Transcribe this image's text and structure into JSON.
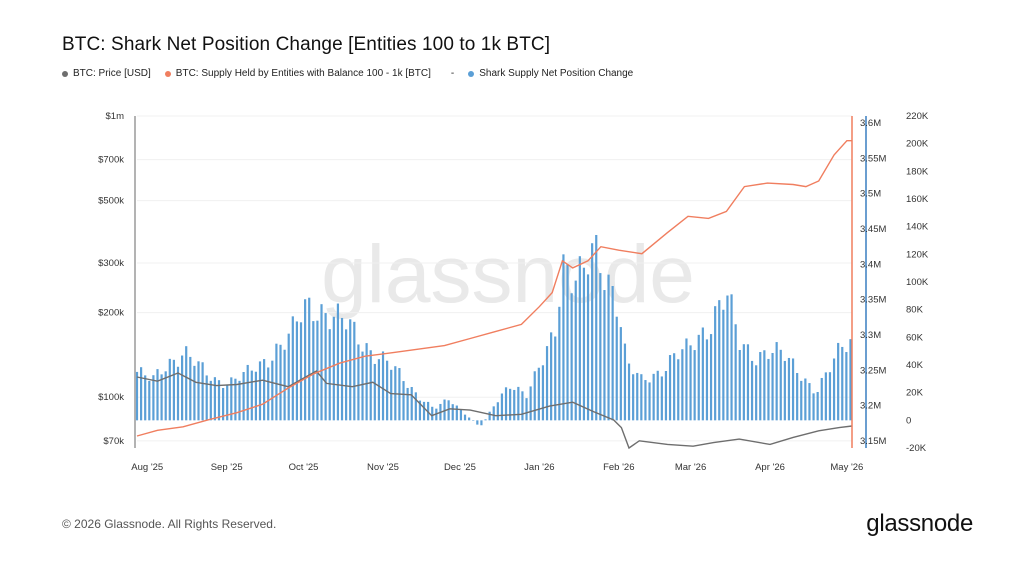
{
  "title": "BTC: Shark Net Position Change [Entities 100 to 1k BTC]",
  "legend": {
    "price": "BTC: Price [USD]",
    "supply": "BTC: Supply Held by Entities with Balance 100 - 1k [BTC]",
    "separator": "-",
    "change": "Shark Supply Net Position Change"
  },
  "watermark": "glassnode",
  "footer": {
    "copyright": "© 2026 Glassnode. All Rights Reserved.",
    "logo": "glassnode"
  },
  "colors": {
    "price": "#6e6e6e",
    "supply": "#f07e5f",
    "bars": "#5b9fd6",
    "axis_supply": "#f07e5f",
    "axis_change": "#3a7fc1"
  },
  "chart_data": {
    "type": "line",
    "x_labels": [
      "Aug '25",
      "Sep '25",
      "Oct '25",
      "Nov '25",
      "Dec '25",
      "Jan '26",
      "Feb '26",
      "Mar '26",
      "Apr '26",
      "May '26"
    ],
    "x_range": [
      "2025-07-28",
      "2026-05-03"
    ],
    "axes": {
      "price": {
        "scale": "log",
        "ylim": [
          66000,
          1000000
        ],
        "ticks": [
          70000,
          100000,
          200000,
          300000,
          500000,
          700000,
          1000000
        ],
        "tick_labels": [
          "$70k",
          "$100k",
          "$200k",
          "$300k",
          "$500k",
          "$700k",
          "$1m"
        ]
      },
      "supply": {
        "scale": "linear",
        "ylim": [
          3140000,
          3610000
        ],
        "ticks": [
          3150000,
          3200000,
          3250000,
          3300000,
          3350000,
          3400000,
          3450000,
          3500000,
          3550000,
          3600000
        ],
        "tick_labels": [
          "3.15M",
          "3.2M",
          "3.25M",
          "3.3M",
          "3.35M",
          "3.4M",
          "3.45M",
          "3.5M",
          "3.55M",
          "3.6M"
        ]
      },
      "change": {
        "scale": "linear",
        "ylim": [
          -20000,
          220000
        ],
        "ticks": [
          -20000,
          0,
          20000,
          40000,
          60000,
          80000,
          100000,
          120000,
          140000,
          160000,
          180000,
          200000,
          220000
        ],
        "tick_labels": [
          "-20K",
          "0",
          "20K",
          "40K",
          "60K",
          "80K",
          "100K",
          "120K",
          "140K",
          "160K",
          "180K",
          "200K",
          "220K"
        ]
      }
    },
    "series": [
      {
        "name": "BTC: Price [USD]",
        "points": [
          [
            "2025-07-28",
            118000
          ],
          [
            "2025-08-05",
            114000
          ],
          [
            "2025-08-13",
            122000
          ],
          [
            "2025-08-20",
            113000
          ],
          [
            "2025-08-28",
            110000
          ],
          [
            "2025-09-05",
            111000
          ],
          [
            "2025-09-15",
            115000
          ],
          [
            "2025-09-25",
            109000
          ],
          [
            "2025-10-06",
            124000
          ],
          [
            "2025-10-10",
            112000
          ],
          [
            "2025-10-20",
            109000
          ],
          [
            "2025-10-28",
            113000
          ],
          [
            "2025-11-04",
            103000
          ],
          [
            "2025-11-12",
            102000
          ],
          [
            "2025-11-20",
            86000
          ],
          [
            "2025-11-27",
            91000
          ],
          [
            "2025-12-05",
            90000
          ],
          [
            "2025-12-15",
            86000
          ],
          [
            "2025-12-25",
            87000
          ],
          [
            "2026-01-05",
            93000
          ],
          [
            "2026-01-14",
            96000
          ],
          [
            "2026-01-22",
            89000
          ],
          [
            "2026-01-30",
            83000
          ],
          [
            "2026-02-02",
            78000
          ],
          [
            "2026-02-05",
            66000
          ],
          [
            "2026-02-09",
            70000
          ],
          [
            "2026-02-20",
            68000
          ],
          [
            "2026-03-02",
            67000
          ],
          [
            "2026-03-10",
            69000
          ],
          [
            "2026-03-20",
            71000
          ],
          [
            "2026-04-01",
            68000
          ],
          [
            "2026-04-10",
            72000
          ],
          [
            "2026-04-20",
            76000
          ],
          [
            "2026-04-28",
            78000
          ],
          [
            "2026-05-03",
            79000
          ]
        ]
      },
      {
        "name": "BTC: Supply Held by Entities with Balance 100 - 1k [BTC]",
        "points": [
          [
            "2025-07-28",
            3157000
          ],
          [
            "2025-08-05",
            3165000
          ],
          [
            "2025-08-15",
            3170000
          ],
          [
            "2025-08-25",
            3180000
          ],
          [
            "2025-09-05",
            3190000
          ],
          [
            "2025-09-15",
            3202000
          ],
          [
            "2025-09-25",
            3225000
          ],
          [
            "2025-10-05",
            3245000
          ],
          [
            "2025-10-15",
            3260000
          ],
          [
            "2025-10-25",
            3270000
          ],
          [
            "2025-11-05",
            3275000
          ],
          [
            "2025-11-15",
            3280000
          ],
          [
            "2025-11-25",
            3285000
          ],
          [
            "2025-12-05",
            3295000
          ],
          [
            "2025-12-15",
            3305000
          ],
          [
            "2025-12-25",
            3315000
          ],
          [
            "2026-01-01",
            3340000
          ],
          [
            "2026-01-06",
            3360000
          ],
          [
            "2026-01-10",
            3405000
          ],
          [
            "2026-01-14",
            3395000
          ],
          [
            "2026-01-20",
            3405000
          ],
          [
            "2026-01-25",
            3425000
          ],
          [
            "2026-02-01",
            3420000
          ],
          [
            "2026-02-10",
            3415000
          ],
          [
            "2026-02-20",
            3445000
          ],
          [
            "2026-02-28",
            3468000
          ],
          [
            "2026-03-08",
            3465000
          ],
          [
            "2026-03-15",
            3475000
          ],
          [
            "2026-03-22",
            3510000
          ],
          [
            "2026-03-31",
            3515000
          ],
          [
            "2026-04-10",
            3513000
          ],
          [
            "2026-04-15",
            3510000
          ],
          [
            "2026-04-20",
            3518000
          ],
          [
            "2026-04-26",
            3555000
          ],
          [
            "2026-05-01",
            3575000
          ],
          [
            "2026-05-03",
            3575000
          ]
        ]
      },
      {
        "name": "Shark Supply Net Position Change",
        "type": "bar",
        "points": [
          [
            "2025-07-28",
            35000
          ],
          [
            "2025-08-03",
            28000
          ],
          [
            "2025-08-09",
            42000
          ],
          [
            "2025-08-15",
            50000
          ],
          [
            "2025-08-21",
            38000
          ],
          [
            "2025-08-27",
            30000
          ],
          [
            "2025-09-02",
            28000
          ],
          [
            "2025-09-08",
            32000
          ],
          [
            "2025-09-14",
            40000
          ],
          [
            "2025-09-20",
            52000
          ],
          [
            "2025-09-26",
            60000
          ],
          [
            "2025-10-02",
            82000
          ],
          [
            "2025-10-06",
            85000
          ],
          [
            "2025-10-10",
            78000
          ],
          [
            "2025-10-14",
            72000
          ],
          [
            "2025-10-18",
            68000
          ],
          [
            "2025-10-22",
            62000
          ],
          [
            "2025-10-28",
            50000
          ],
          [
            "2025-11-03",
            40000
          ],
          [
            "2025-11-09",
            30000
          ],
          [
            "2025-11-15",
            18000
          ],
          [
            "2025-11-21",
            8000
          ],
          [
            "2025-11-27",
            15000
          ],
          [
            "2025-12-03",
            5000
          ],
          [
            "2025-12-09",
            -5000
          ],
          [
            "2025-12-15",
            12000
          ],
          [
            "2025-12-21",
            28000
          ],
          [
            "2025-12-27",
            18000
          ],
          [
            "2026-01-02",
            40000
          ],
          [
            "2026-01-07",
            65000
          ],
          [
            "2026-01-10",
            120000
          ],
          [
            "2026-01-14",
            105000
          ],
          [
            "2026-01-18",
            100000
          ],
          [
            "2026-01-22",
            120000
          ],
          [
            "2026-01-27",
            110000
          ],
          [
            "2026-02-01",
            85000
          ],
          [
            "2026-02-04",
            40000
          ],
          [
            "2026-02-10",
            28000
          ],
          [
            "2026-02-16",
            35000
          ],
          [
            "2026-02-22",
            45000
          ],
          [
            "2026-02-28",
            50000
          ],
          [
            "2026-03-06",
            65000
          ],
          [
            "2026-03-11",
            80000
          ],
          [
            "2026-03-15",
            90000
          ],
          [
            "2026-03-20",
            55000
          ],
          [
            "2026-03-26",
            48000
          ],
          [
            "2026-04-01",
            50000
          ],
          [
            "2026-04-07",
            45000
          ],
          [
            "2026-04-13",
            35000
          ],
          [
            "2026-04-19",
            20000
          ],
          [
            "2026-04-25",
            38000
          ],
          [
            "2026-04-30",
            58000
          ],
          [
            "2026-05-03",
            60000
          ]
        ]
      }
    ]
  }
}
